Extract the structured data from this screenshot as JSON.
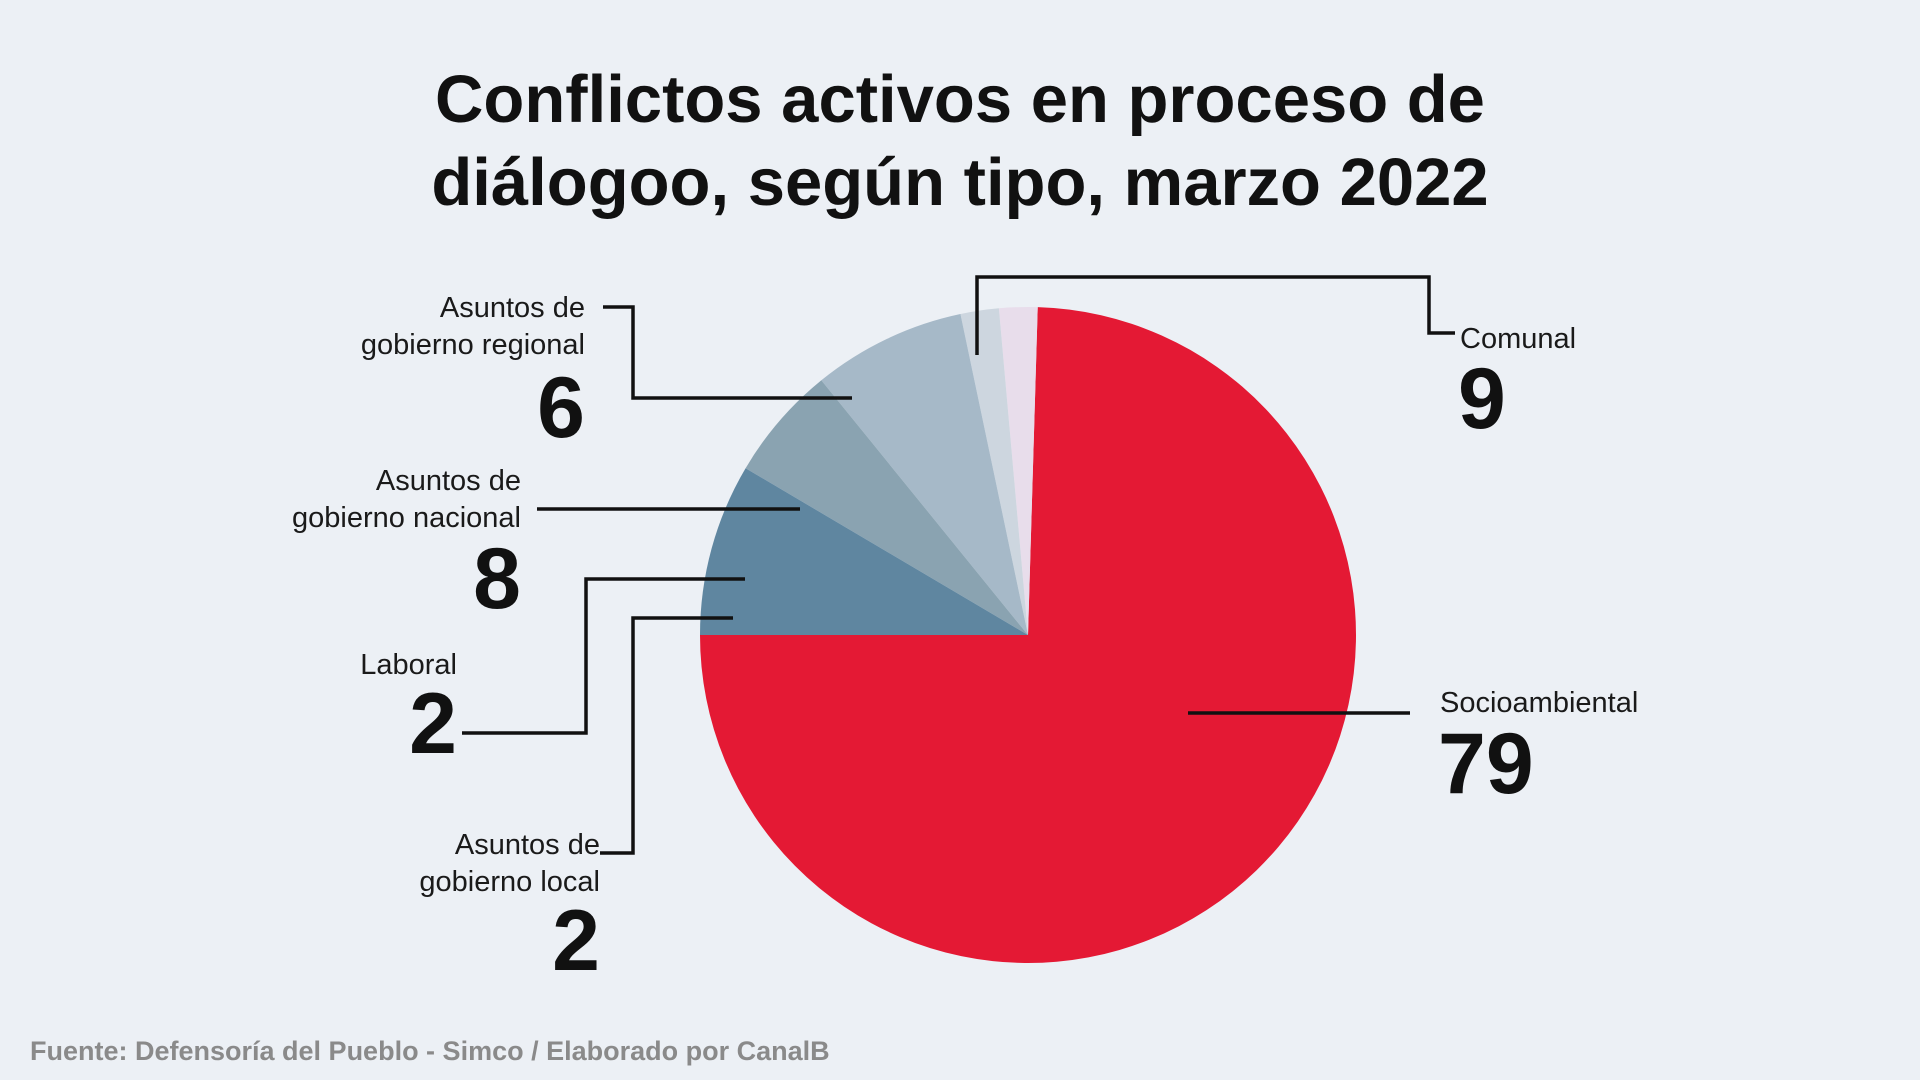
{
  "chart_data": {
    "type": "pie",
    "title_lines": [
      "Conflictos activos en proceso de",
      "diálogoo, según tipo, marzo 2022"
    ],
    "slices": [
      {
        "label_lines": [
          "Socioambiental"
        ],
        "value": 79,
        "color": "#E41934"
      },
      {
        "label_lines": [
          "Asuntos de",
          "gobierno local"
        ],
        "value": 2,
        "color": "#E8DDEB"
      },
      {
        "label_lines": [
          "Laboral"
        ],
        "value": 2,
        "color": "#CDD6DF"
      },
      {
        "label_lines": [
          "Asuntos de",
          "gobierno nacional"
        ],
        "value": 8,
        "color": "#A6B9C8"
      },
      {
        "label_lines": [
          "Asuntos de",
          "gobierno regional"
        ],
        "value": 6,
        "color": "#8AA3B1"
      },
      {
        "label_lines": [
          "Comunal"
        ],
        "value": 9,
        "color": "#5F86A0"
      }
    ]
  },
  "source": "Fuente: Defensoría del Pueblo - Simco / Elaborado por CanalB"
}
